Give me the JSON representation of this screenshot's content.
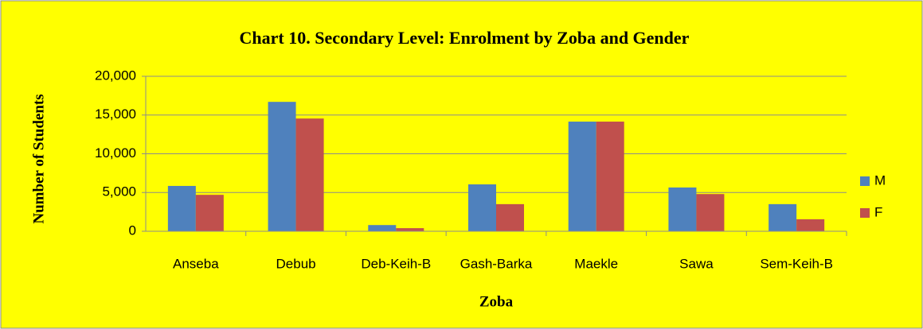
{
  "chart_data": {
    "type": "bar",
    "title": "Chart 10. Secondary Level: Enrolment by Zoba and Gender",
    "x_label": "Zoba",
    "y_label": "Number of Students",
    "categories": [
      "Anseba",
      "Debub",
      "Deb-Keih-B",
      "Gash-Barka",
      "Maekle",
      "Sawa",
      "Sem-Keih-B"
    ],
    "series": [
      {
        "name": "M",
        "color": "#4f81bd",
        "values": [
          5850,
          16700,
          800,
          6050,
          14150,
          5650,
          3500
        ]
      },
      {
        "name": "F",
        "color": "#c0504d",
        "values": [
          4700,
          14550,
          400,
          3500,
          14150,
          4800,
          1550
        ]
      }
    ],
    "ylim": [
      0,
      20000
    ],
    "yticks": [
      0,
      {
        "value": 5000,
        "label": "5,000"
      },
      {
        "value": 10000,
        "label": "10,000"
      },
      {
        "value": 15000,
        "label": "15,000"
      },
      {
        "value": 20000,
        "label": "20,000"
      }
    ],
    "grid": true,
    "legend": "right"
  }
}
